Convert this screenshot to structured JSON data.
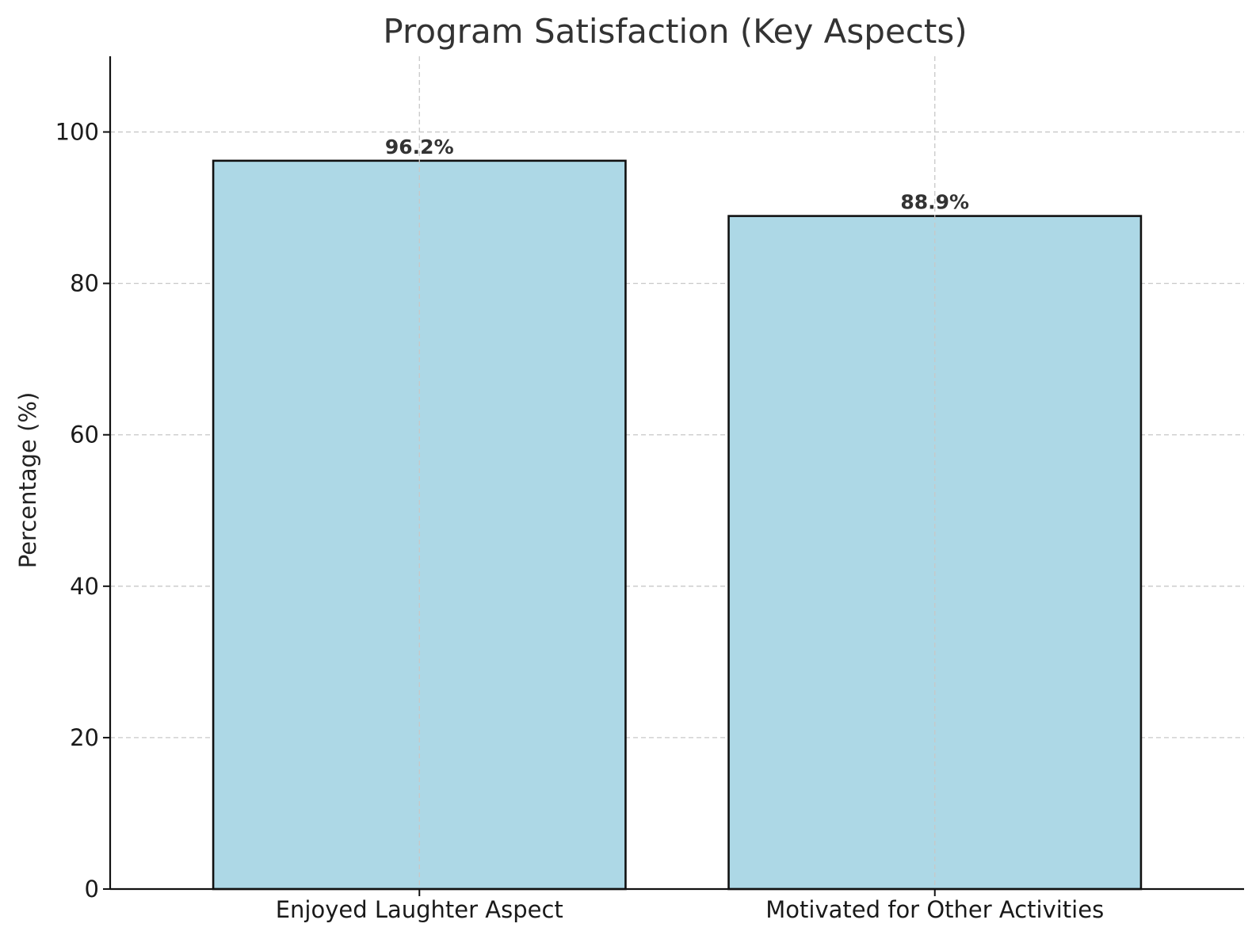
{
  "chart_data": {
    "type": "bar",
    "title": "Program Satisfaction (Key Aspects)",
    "xlabel": "",
    "ylabel": "Percentage (%)",
    "categories": [
      "Enjoyed Laughter Aspect",
      "Motivated for Other Activities"
    ],
    "values": [
      96.2,
      88.9
    ],
    "data_labels": [
      "96.2%",
      "88.9%"
    ],
    "ylim": [
      0,
      110
    ],
    "yticks": [
      0,
      20,
      40,
      60,
      80,
      100
    ],
    "ytick_labels": [
      "0",
      "20",
      "40",
      "60",
      "80",
      "100"
    ],
    "grid": true,
    "bar_color": "#add8e6",
    "edge_color": "#111111"
  }
}
